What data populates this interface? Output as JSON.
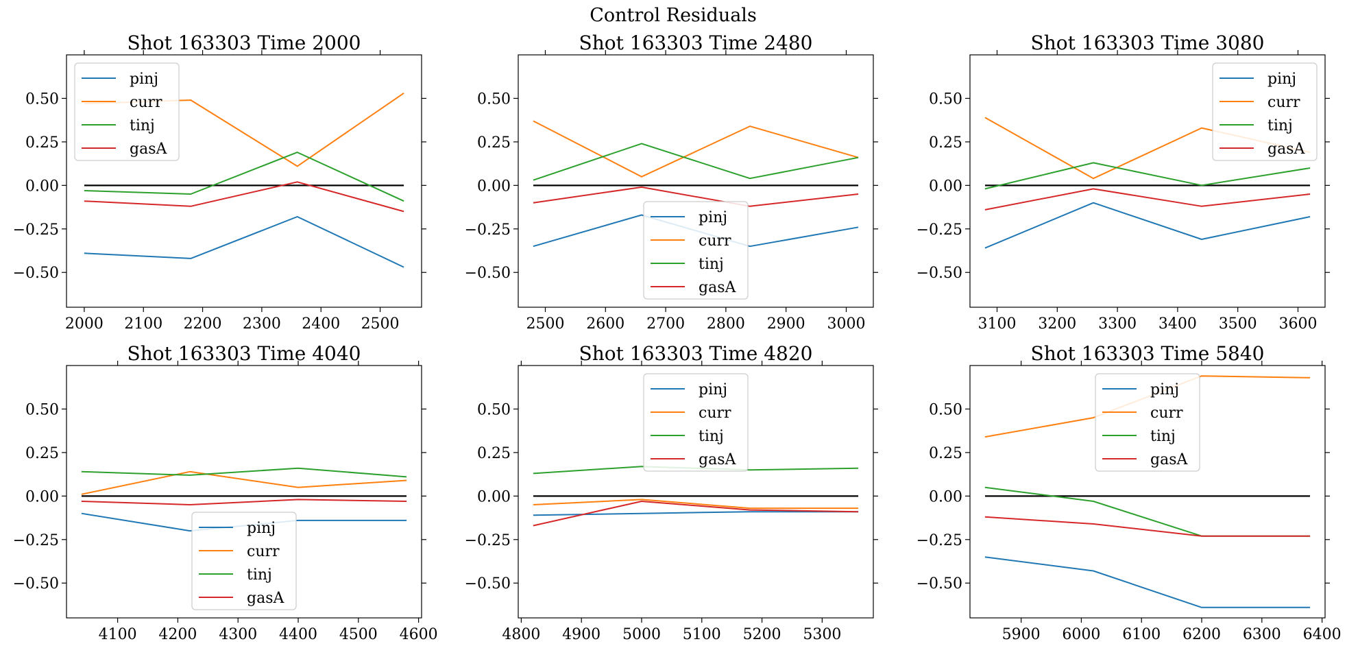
{
  "figure_title": "Control Residuals",
  "colors": {
    "pinj": "#1f77b4",
    "curr": "#ff7f0e",
    "tinj": "#2ca02c",
    "gasA": "#d62728",
    "zero_line": "#000000"
  },
  "chart_data": [
    {
      "type": "line",
      "title": "Shot 163303   Time 2000",
      "x": [
        2000,
        2180,
        2360,
        2540
      ],
      "xticks": [
        2000,
        2100,
        2200,
        2300,
        2400,
        2500
      ],
      "xlim": [
        1970,
        2570
      ],
      "ylim": [
        -0.7,
        0.75
      ],
      "yticks": [
        -0.5,
        -0.25,
        0.0,
        0.25,
        0.5
      ],
      "ytick_labels": [
        "−0.50",
        "−0.25",
        "0.00",
        "0.25",
        "0.50"
      ],
      "legend_position": "upper-left",
      "series": [
        {
          "name": "pinj",
          "values": [
            -0.39,
            -0.42,
            -0.18,
            -0.47
          ]
        },
        {
          "name": "curr",
          "values": [
            0.47,
            0.49,
            0.11,
            0.53
          ]
        },
        {
          "name": "tinj",
          "values": [
            -0.03,
            -0.05,
            0.19,
            -0.09
          ]
        },
        {
          "name": "gasA",
          "values": [
            -0.09,
            -0.12,
            0.02,
            -0.15
          ]
        }
      ],
      "zero_line": true
    },
    {
      "type": "line",
      "title": "Shot 163303   Time 2480",
      "x": [
        2480,
        2660,
        2840,
        3020
      ],
      "xticks": [
        2500,
        2600,
        2700,
        2800,
        2900,
        3000
      ],
      "xlim": [
        2455,
        3045
      ],
      "ylim": [
        -0.7,
        0.75
      ],
      "yticks": [
        -0.5,
        -0.25,
        0.0,
        0.25,
        0.5
      ],
      "ytick_labels": [
        "−0.50",
        "−0.25",
        "0.00",
        "0.25",
        "0.50"
      ],
      "legend_position": "lower-center",
      "series": [
        {
          "name": "pinj",
          "values": [
            -0.35,
            -0.17,
            -0.35,
            -0.24
          ]
        },
        {
          "name": "curr",
          "values": [
            0.37,
            0.05,
            0.34,
            0.16
          ]
        },
        {
          "name": "tinj",
          "values": [
            0.03,
            0.24,
            0.04,
            0.16
          ]
        },
        {
          "name": "gasA",
          "values": [
            -0.1,
            -0.01,
            -0.12,
            -0.05
          ]
        }
      ],
      "zero_line": true
    },
    {
      "type": "line",
      "title": "Shot 163303   Time 3080",
      "x": [
        3080,
        3260,
        3440,
        3620
      ],
      "xticks": [
        3100,
        3200,
        3300,
        3400,
        3500,
        3600
      ],
      "xlim": [
        3055,
        3645
      ],
      "ylim": [
        -0.7,
        0.75
      ],
      "yticks": [
        -0.5,
        -0.25,
        0.0,
        0.25,
        0.5
      ],
      "ytick_labels": [
        "−0.50",
        "−0.25",
        "0.00",
        "0.25",
        "0.50"
      ],
      "legend_position": "upper-right",
      "series": [
        {
          "name": "pinj",
          "values": [
            -0.36,
            -0.1,
            -0.31,
            -0.18
          ]
        },
        {
          "name": "curr",
          "values": [
            0.39,
            0.04,
            0.33,
            0.19
          ]
        },
        {
          "name": "tinj",
          "values": [
            -0.02,
            0.13,
            0.0,
            0.1
          ]
        },
        {
          "name": "gasA",
          "values": [
            -0.14,
            -0.02,
            -0.12,
            -0.05
          ]
        }
      ],
      "zero_line": true
    },
    {
      "type": "line",
      "title": "Shot 163303   Time 4040",
      "x": [
        4040,
        4220,
        4400,
        4580
      ],
      "xticks": [
        4100,
        4200,
        4300,
        4400,
        4500,
        4600
      ],
      "xlim": [
        4015,
        4605
      ],
      "ylim": [
        -0.7,
        0.75
      ],
      "yticks": [
        -0.5,
        -0.25,
        0.0,
        0.25,
        0.5
      ],
      "ytick_labels": [
        "−0.50",
        "−0.25",
        "0.00",
        "0.25",
        "0.50"
      ],
      "legend_position": "lower-center",
      "series": [
        {
          "name": "pinj",
          "values": [
            -0.1,
            -0.2,
            -0.14,
            -0.14
          ]
        },
        {
          "name": "curr",
          "values": [
            0.01,
            0.14,
            0.05,
            0.09
          ]
        },
        {
          "name": "tinj",
          "values": [
            0.14,
            0.12,
            0.16,
            0.11
          ]
        },
        {
          "name": "gasA",
          "values": [
            -0.03,
            -0.05,
            -0.02,
            -0.03
          ]
        }
      ],
      "zero_line": true
    },
    {
      "type": "line",
      "title": "Shot 163303   Time 4820",
      "x": [
        4820,
        5000,
        5180,
        5360
      ],
      "xticks": [
        4800,
        4900,
        5000,
        5100,
        5200,
        5300
      ],
      "xlim": [
        4795,
        5385
      ],
      "ylim": [
        -0.7,
        0.75
      ],
      "yticks": [
        -0.5,
        -0.25,
        0.0,
        0.25,
        0.5
      ],
      "ytick_labels": [
        "−0.50",
        "−0.25",
        "0.00",
        "0.25",
        "0.50"
      ],
      "legend_position": "upper-center",
      "series": [
        {
          "name": "pinj",
          "values": [
            -0.11,
            -0.1,
            -0.09,
            -0.09
          ]
        },
        {
          "name": "curr",
          "values": [
            -0.05,
            -0.02,
            -0.07,
            -0.07
          ]
        },
        {
          "name": "tinj",
          "values": [
            0.13,
            0.17,
            0.15,
            0.16
          ]
        },
        {
          "name": "gasA",
          "values": [
            -0.17,
            -0.03,
            -0.08,
            -0.09
          ]
        }
      ],
      "zero_line": true
    },
    {
      "type": "line",
      "title": "Shot 163303   Time 5840",
      "x": [
        5840,
        6020,
        6200,
        6380
      ],
      "xticks": [
        5900,
        6000,
        6100,
        6200,
        6300,
        6400
      ],
      "xlim": [
        5815,
        6405
      ],
      "ylim": [
        -0.7,
        0.75
      ],
      "yticks": [
        -0.5,
        -0.25,
        0.0,
        0.25,
        0.5
      ],
      "ytick_labels": [
        "−0.50",
        "−0.25",
        "0.00",
        "0.25",
        "0.50"
      ],
      "legend_position": "upper-center",
      "series": [
        {
          "name": "pinj",
          "values": [
            -0.35,
            -0.43,
            -0.64,
            -0.64
          ]
        },
        {
          "name": "curr",
          "values": [
            0.34,
            0.45,
            0.69,
            0.68
          ]
        },
        {
          "name": "tinj",
          "values": [
            0.05,
            -0.03,
            -0.23,
            -0.23
          ]
        },
        {
          "name": "gasA",
          "values": [
            -0.12,
            -0.16,
            -0.23,
            -0.23
          ]
        }
      ],
      "zero_line": true
    }
  ]
}
